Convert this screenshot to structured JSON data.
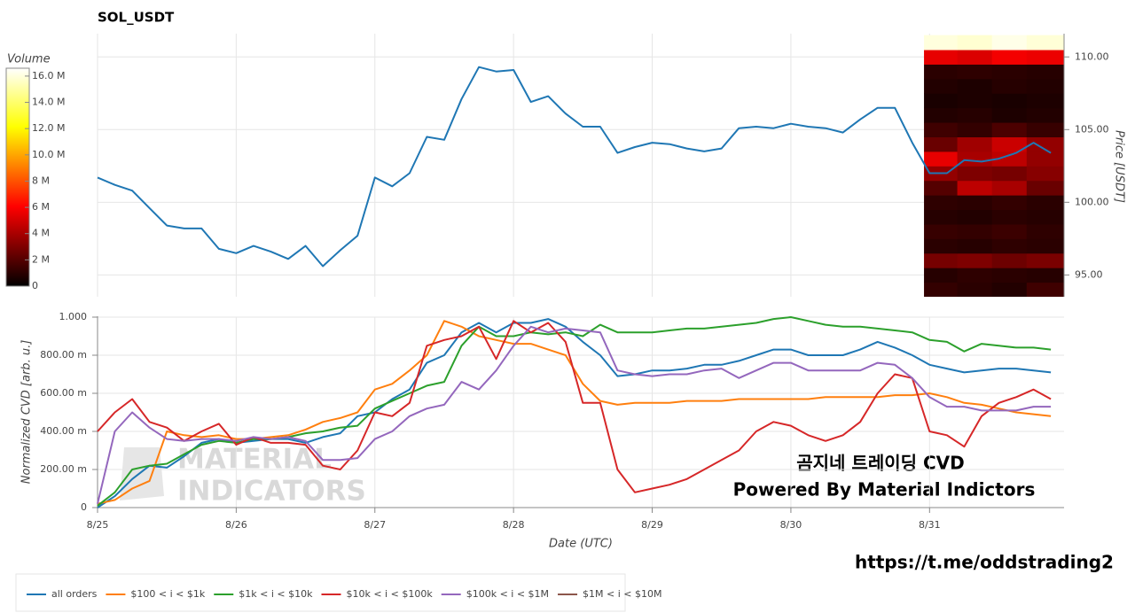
{
  "chart_data": [
    {
      "type": "line",
      "title": "SOL_USDT",
      "y_label": "Price [USDT]",
      "x": [
        0,
        0.125,
        0.25,
        0.375,
        0.5,
        0.625,
        0.75,
        0.875,
        1,
        1.125,
        1.25,
        1.375,
        1.5,
        1.625,
        1.75,
        1.875,
        2,
        2.125,
        2.25,
        2.375,
        2.5,
        2.625,
        2.75,
        2.875,
        3,
        3.125,
        3.25,
        3.375,
        3.5,
        3.625,
        3.75,
        3.875,
        4,
        4.125,
        4.25,
        4.375,
        4.5,
        4.625,
        4.75,
        4.875,
        5,
        5.125,
        5.25,
        5.375,
        5.5,
        5.625,
        5.75,
        5.875,
        6,
        6.125,
        6.25,
        6.375,
        6.5,
        6.625,
        6.75,
        6.875
      ],
      "xlim": [
        0,
        6.97
      ],
      "ylim": [
        93.5,
        111.6
      ],
      "yticks": [
        {
          "value": 95,
          "label": "95.00"
        },
        {
          "value": 100,
          "label": "100.00"
        },
        {
          "value": 105,
          "label": "105.00"
        },
        {
          "value": 110,
          "label": "110.00"
        }
      ],
      "grid": true,
      "series": [
        {
          "color": "#1f77b4",
          "values": [
            101.7,
            101.2,
            100.8,
            99.6,
            98.4,
            98.2,
            98.2,
            96.8,
            96.5,
            97.0,
            96.6,
            96.1,
            97.0,
            95.6,
            96.7,
            97.7,
            101.7,
            101.1,
            102.0,
            104.5,
            104.3,
            107.1,
            109.3,
            109.0,
            109.1,
            106.9,
            107.3,
            106.1,
            105.2,
            105.2,
            103.4,
            103.8,
            104.1,
            104.0,
            103.7,
            103.5,
            103.7,
            105.1,
            105.2,
            105.1,
            105.4,
            105.2,
            105.1,
            104.8,
            105.7,
            106.5,
            106.5,
            104.1,
            102.0,
            102.0,
            102.9,
            102.8,
            103.0,
            103.4,
            104.1,
            103.4
          ]
        }
      ],
      "heatmap": {
        "x_edges": [
          5.96,
          6.2,
          6.45,
          6.7,
          6.97
        ],
        "y_edges": [
          93.5,
          94.5,
          95.5,
          96.5,
          97.5,
          98.5,
          99.5,
          100.5,
          101.5,
          102.5,
          103.5,
          104.5,
          105.5,
          106.5,
          107.5,
          108.5,
          109.5,
          110.5,
          111.5
        ],
        "values": [
          [
            1200000,
            1000000,
            800000,
            1500000
          ],
          [
            900000,
            1100000,
            1000000,
            900000
          ],
          [
            2800000,
            3000000,
            2600000,
            2900000
          ],
          [
            1000000,
            900000,
            1100000,
            1000000
          ],
          [
            1300000,
            1200000,
            1400000,
            1100000
          ],
          [
            900000,
            800000,
            1000000,
            900000
          ],
          [
            1100000,
            1000000,
            1200000,
            1000000
          ],
          [
            2000000,
            4500000,
            4000000,
            2500000
          ],
          [
            3500000,
            3000000,
            2800000,
            3200000
          ],
          [
            5500000,
            4000000,
            4500000,
            3500000
          ],
          [
            2500000,
            3800000,
            4800000,
            3500000
          ],
          [
            1500000,
            1200000,
            1800000,
            1300000
          ],
          [
            800000,
            900000,
            700000,
            800000
          ],
          [
            600000,
            700000,
            600000,
            700000
          ],
          [
            800000,
            700000,
            900000,
            800000
          ],
          [
            1000000,
            1100000,
            1000000,
            900000
          ],
          [
            5500000,
            5200000,
            5800000,
            5600000
          ],
          [
            16000000,
            15800000,
            16200000,
            15900000
          ]
        ]
      },
      "colorbar": {
        "title": "Volume",
        "lim": [
          0,
          16600000
        ],
        "ticks": [
          0,
          {
            "value": 2000000,
            "label": "2 M"
          },
          {
            "value": 4000000,
            "label": "4 M"
          },
          {
            "value": 6000000,
            "label": "6 M"
          },
          {
            "value": 8000000,
            "label": "8 M"
          },
          {
            "value": 10000000,
            "label": "10.0 M"
          },
          {
            "value": 12000000,
            "label": "12.0 M"
          },
          {
            "value": 14000000,
            "label": "14.0 M"
          },
          {
            "value": 16000000,
            "label": "16.0 M"
          }
        ]
      }
    },
    {
      "type": "line",
      "x_label": "Date (UTC)",
      "y_label": "Normalized CVD [arb. u.]",
      "x": [
        0,
        0.125,
        0.25,
        0.375,
        0.5,
        0.625,
        0.75,
        0.875,
        1,
        1.125,
        1.25,
        1.375,
        1.5,
        1.625,
        1.75,
        1.875,
        2,
        2.125,
        2.25,
        2.375,
        2.5,
        2.625,
        2.75,
        2.875,
        3,
        3.125,
        3.25,
        3.375,
        3.5,
        3.625,
        3.75,
        3.875,
        4,
        4.125,
        4.25,
        4.375,
        4.5,
        4.625,
        4.75,
        4.875,
        5,
        5.125,
        5.25,
        5.375,
        5.5,
        5.625,
        5.75,
        5.875,
        6,
        6.125,
        6.25,
        6.375,
        6.5,
        6.625,
        6.75,
        6.875
      ],
      "xlim": [
        0,
        6.97
      ],
      "xticks": [
        {
          "value": 0,
          "label": "8/25"
        },
        {
          "value": 1,
          "label": "8/26"
        },
        {
          "value": 2,
          "label": "8/27"
        },
        {
          "value": 3,
          "label": "8/28"
        },
        {
          "value": 4,
          "label": "8/29"
        },
        {
          "value": 5,
          "label": "8/30"
        },
        {
          "value": 6,
          "label": "8/31"
        }
      ],
      "ylim": [
        0,
        1
      ],
      "yticks": [
        0,
        {
          "value": 0.2,
          "label": "200.00 m"
        },
        {
          "value": 0.4,
          "label": "400.00 m"
        },
        {
          "value": 0.6,
          "label": "600.00 m"
        },
        {
          "value": 0.8,
          "label": "800.00 m"
        },
        {
          "value": 1,
          "label": "1.000"
        }
      ],
      "grid": true,
      "legend": "bottom",
      "series": [
        {
          "name": "all orders",
          "color": "#1f77b4",
          "values": [
            0,
            0.06,
            0.15,
            0.22,
            0.21,
            0.27,
            0.34,
            0.36,
            0.34,
            0.35,
            0.36,
            0.36,
            0.34,
            0.37,
            0.39,
            0.48,
            0.5,
            0.57,
            0.62,
            0.76,
            0.8,
            0.92,
            0.97,
            0.92,
            0.97,
            0.97,
            0.99,
            0.95,
            0.87,
            0.8,
            0.69,
            0.7,
            0.72,
            0.72,
            0.73,
            0.75,
            0.75,
            0.77,
            0.8,
            0.83,
            0.83,
            0.8,
            0.8,
            0.8,
            0.83,
            0.87,
            0.84,
            0.8,
            0.75,
            0.73,
            0.71,
            0.72,
            0.73,
            0.73,
            0.72,
            0.71
          ]
        },
        {
          "name": "$100 < i < $1k",
          "color": "#ff7f0e",
          "values": [
            0.02,
            0.04,
            0.1,
            0.14,
            0.4,
            0.38,
            0.37,
            0.38,
            0.36,
            0.36,
            0.37,
            0.38,
            0.41,
            0.45,
            0.47,
            0.5,
            0.62,
            0.65,
            0.72,
            0.8,
            0.98,
            0.95,
            0.9,
            0.88,
            0.86,
            0.86,
            0.83,
            0.8,
            0.65,
            0.56,
            0.54,
            0.55,
            0.55,
            0.55,
            0.56,
            0.56,
            0.56,
            0.57,
            0.57,
            0.57,
            0.57,
            0.57,
            0.58,
            0.58,
            0.58,
            0.58,
            0.59,
            0.59,
            0.6,
            0.58,
            0.55,
            0.54,
            0.52,
            0.5,
            0.49,
            0.48
          ]
        },
        {
          "name": "$1k < i < $10k",
          "color": "#2ca02c",
          "values": [
            0.01,
            0.08,
            0.2,
            0.22,
            0.23,
            0.28,
            0.33,
            0.35,
            0.34,
            0.36,
            0.36,
            0.37,
            0.39,
            0.4,
            0.42,
            0.43,
            0.52,
            0.56,
            0.6,
            0.64,
            0.66,
            0.85,
            0.95,
            0.9,
            0.9,
            0.92,
            0.91,
            0.92,
            0.9,
            0.96,
            0.92,
            0.92,
            0.92,
            0.93,
            0.94,
            0.94,
            0.95,
            0.96,
            0.97,
            0.99,
            1,
            0.98,
            0.96,
            0.95,
            0.95,
            0.94,
            0.93,
            0.92,
            0.88,
            0.87,
            0.82,
            0.86,
            0.85,
            0.84,
            0.84,
            0.83
          ]
        },
        {
          "name": "$10k < i < $100k",
          "color": "#d62728",
          "values": [
            0.4,
            0.5,
            0.57,
            0.45,
            0.42,
            0.35,
            0.4,
            0.44,
            0.33,
            0.37,
            0.34,
            0.34,
            0.33,
            0.22,
            0.2,
            0.3,
            0.5,
            0.48,
            0.55,
            0.85,
            0.88,
            0.9,
            0.95,
            0.78,
            0.98,
            0.92,
            0.97,
            0.87,
            0.55,
            0.55,
            0.2,
            0.08,
            0.1,
            0.12,
            0.15,
            0.2,
            0.25,
            0.3,
            0.4,
            0.45,
            0.43,
            0.38,
            0.35,
            0.38,
            0.45,
            0.6,
            0.7,
            0.68,
            0.4,
            0.38,
            0.32,
            0.48,
            0.55,
            0.58,
            0.62,
            0.57
          ]
        },
        {
          "name": "$100k < i < $1M",
          "color": "#9467bd",
          "values": [
            0.02,
            0.4,
            0.5,
            0.42,
            0.36,
            0.35,
            0.36,
            0.36,
            0.35,
            0.37,
            0.36,
            0.37,
            0.35,
            0.25,
            0.25,
            0.26,
            0.36,
            0.4,
            0.48,
            0.52,
            0.54,
            0.66,
            0.62,
            0.72,
            0.85,
            0.95,
            0.92,
            0.94,
            0.93,
            0.92,
            0.72,
            0.7,
            0.69,
            0.7,
            0.7,
            0.72,
            0.73,
            0.68,
            0.72,
            0.76,
            0.76,
            0.72,
            0.72,
            0.72,
            0.72,
            0.76,
            0.75,
            0.68,
            0.58,
            0.53,
            0.53,
            0.51,
            0.51,
            0.51,
            0.53,
            0.53
          ]
        },
        {
          "name": "$1M < i < $10M",
          "color": "#8c564b",
          "values": [
            null,
            null,
            null,
            null,
            null,
            null,
            null,
            null,
            null,
            null,
            null,
            null,
            null,
            null,
            null,
            null,
            null,
            null,
            null,
            null,
            null,
            null,
            null,
            null,
            null,
            null,
            null,
            null,
            null,
            null,
            null,
            null,
            null,
            null,
            null,
            null,
            null,
            null,
            null,
            null,
            null,
            null,
            null,
            null,
            null,
            null,
            null,
            null,
            null,
            null,
            null,
            null,
            null,
            null,
            null,
            null
          ]
        }
      ]
    }
  ],
  "annotations": {
    "watermark": [
      "MATERIAL",
      "INDICATORS"
    ],
    "caption": [
      "곰지네 트레이딩 CVD",
      "Powered By Material Indictors"
    ],
    "link": "https://t.me/oddstrading2"
  }
}
